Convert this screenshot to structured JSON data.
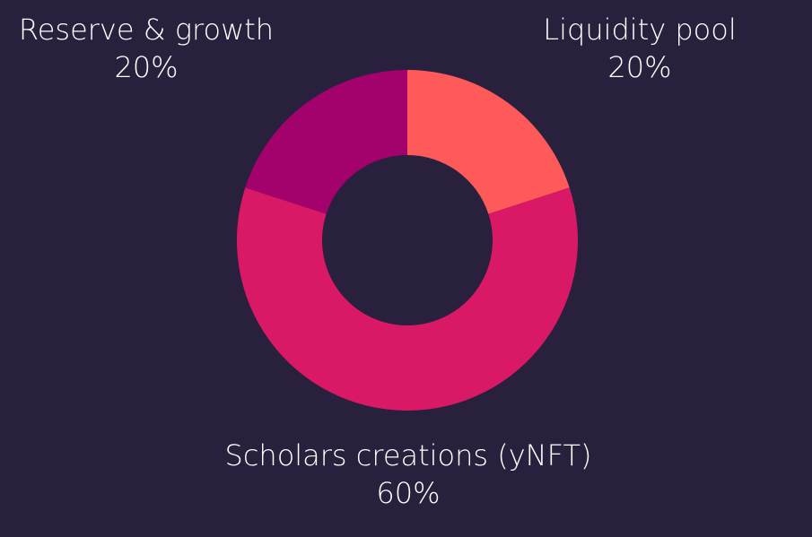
{
  "chart_data": {
    "type": "pie",
    "variant": "donut",
    "title": "",
    "legend": "none",
    "slices": [
      {
        "label": "Liquidity pool",
        "value": 20,
        "display": "20%",
        "color": "#ff5a5a"
      },
      {
        "label": "Scholars creations (yNFT)",
        "value": 60,
        "display": "60%",
        "color": "#d91866"
      },
      {
        "label": "Reserve & growth",
        "value": 20,
        "display": "20%",
        "color": "#a3016b"
      }
    ],
    "colors": {
      "background": "#29203d"
    }
  }
}
